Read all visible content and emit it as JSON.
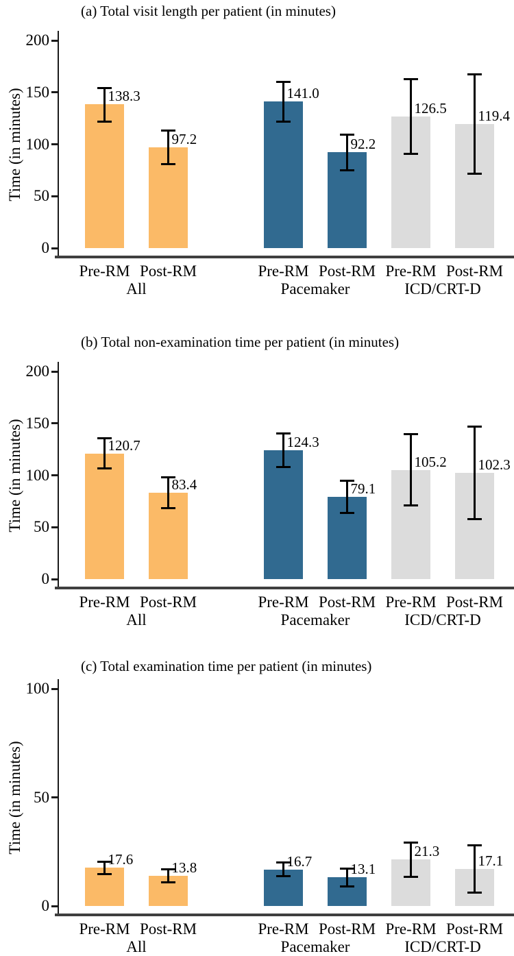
{
  "figure": {
    "y_axis_label": "Time (in minutes)",
    "series_colors": {
      "All": "#FBBA67",
      "Pacemaker": "#316A90",
      "ICD/CRT-D": "#DCDCDC"
    },
    "colors": {
      "axis_line": "#3F3F3F",
      "spine": "#1A1A1A",
      "error_bar": "#000000",
      "text": "#000000",
      "background": "#FFFFFF"
    }
  },
  "chart_data": [
    {
      "type": "bar",
      "title": "(a) Total visit length per patient (in minutes)",
      "ylabel": "Time (in minutes)",
      "ylim": [
        0,
        200
      ],
      "yticks": [
        0,
        50,
        100,
        150,
        200
      ],
      "grid": false,
      "legend": "none",
      "x_tick_labels": [
        "Pre-RM",
        "Post-RM",
        "Pre-RM",
        "Post-RM",
        "Pre-RM",
        "Post-RM"
      ],
      "group_labels": [
        "All",
        "Pacemaker",
        "ICD/CRT-D"
      ],
      "bars": [
        {
          "group": "All",
          "condition": "Pre-RM",
          "value": 138.3,
          "value_label": "138.3",
          "ci": [
            120.5,
            155.0
          ]
        },
        {
          "group": "All",
          "condition": "Post-RM",
          "value": 97.2,
          "value_label": "97.2",
          "ci": [
            80.0,
            114.5
          ]
        },
        {
          "group": "Pacemaker",
          "condition": "Pre-RM",
          "value": 141.0,
          "value_label": "141.0",
          "ci": [
            121.0,
            161.0
          ]
        },
        {
          "group": "Pacemaker",
          "condition": "Post-RM",
          "value": 92.2,
          "value_label": "92.2",
          "ci": [
            74.0,
            110.5
          ]
        },
        {
          "group": "ICD/CRT-D",
          "condition": "Pre-RM",
          "value": 126.5,
          "value_label": "126.5",
          "ci": [
            89.5,
            163.5
          ]
        },
        {
          "group": "ICD/CRT-D",
          "condition": "Post-RM",
          "value": 119.4,
          "value_label": "119.4",
          "ci": [
            70.5,
            168.0
          ]
        }
      ]
    },
    {
      "type": "bar",
      "title": "(b) Total non-examination time per patient (in minutes)",
      "ylabel": "Time (in minutes)",
      "ylim": [
        0,
        200
      ],
      "yticks": [
        0,
        50,
        100,
        150,
        200
      ],
      "grid": false,
      "legend": "none",
      "x_tick_labels": [
        "Pre-RM",
        "Post-RM",
        "Pre-RM",
        "Post-RM",
        "Pre-RM",
        "Post-RM"
      ],
      "group_labels": [
        "All",
        "Pacemaker",
        "ICD/CRT-D"
      ],
      "bars": [
        {
          "group": "All",
          "condition": "Pre-RM",
          "value": 120.7,
          "value_label": "120.7",
          "ci": [
            105.5,
            136.5
          ]
        },
        {
          "group": "All",
          "condition": "Post-RM",
          "value": 83.4,
          "value_label": "83.4",
          "ci": [
            67.5,
            99.0
          ]
        },
        {
          "group": "Pacemaker",
          "condition": "Pre-RM",
          "value": 124.3,
          "value_label": "124.3",
          "ci": [
            107.0,
            141.5
          ]
        },
        {
          "group": "Pacemaker",
          "condition": "Post-RM",
          "value": 79.1,
          "value_label": "79.1",
          "ci": [
            62.5,
            95.5
          ]
        },
        {
          "group": "ICD/CRT-D",
          "condition": "Pre-RM",
          "value": 105.2,
          "value_label": "105.2",
          "ci": [
            70.0,
            140.5
          ]
        },
        {
          "group": "ICD/CRT-D",
          "condition": "Post-RM",
          "value": 102.3,
          "value_label": "102.3",
          "ci": [
            56.5,
            148.0
          ]
        }
      ]
    },
    {
      "type": "bar",
      "title": "(c) Total examination time per patient (in minutes)",
      "ylabel": "Time (in minutes)",
      "ylim": [
        0,
        100
      ],
      "yticks": [
        0,
        50,
        100
      ],
      "grid": false,
      "legend": "none",
      "x_tick_labels": [
        "Pre-RM",
        "Post-RM",
        "Pre-RM",
        "Post-RM",
        "Pre-RM",
        "Post-RM"
      ],
      "group_labels": [
        "All",
        "Pacemaker",
        "ICD/CRT-D"
      ],
      "bars": [
        {
          "group": "All",
          "condition": "Pre-RM",
          "value": 17.6,
          "value_label": "17.6",
          "ci": [
            14.3,
            20.9
          ]
        },
        {
          "group": "All",
          "condition": "Post-RM",
          "value": 13.8,
          "value_label": "13.8",
          "ci": [
            10.3,
            17.3
          ]
        },
        {
          "group": "Pacemaker",
          "condition": "Pre-RM",
          "value": 16.7,
          "value_label": "16.7",
          "ci": [
            13.4,
            20.4
          ]
        },
        {
          "group": "Pacemaker",
          "condition": "Post-RM",
          "value": 13.1,
          "value_label": "13.1",
          "ci": [
            8.5,
            17.7
          ]
        },
        {
          "group": "ICD/CRT-D",
          "condition": "Pre-RM",
          "value": 21.3,
          "value_label": "21.3",
          "ci": [
            12.8,
            29.8
          ]
        },
        {
          "group": "ICD/CRT-D",
          "condition": "Post-RM",
          "value": 17.1,
          "value_label": "17.1",
          "ci": [
            5.7,
            28.5
          ]
        }
      ]
    }
  ]
}
